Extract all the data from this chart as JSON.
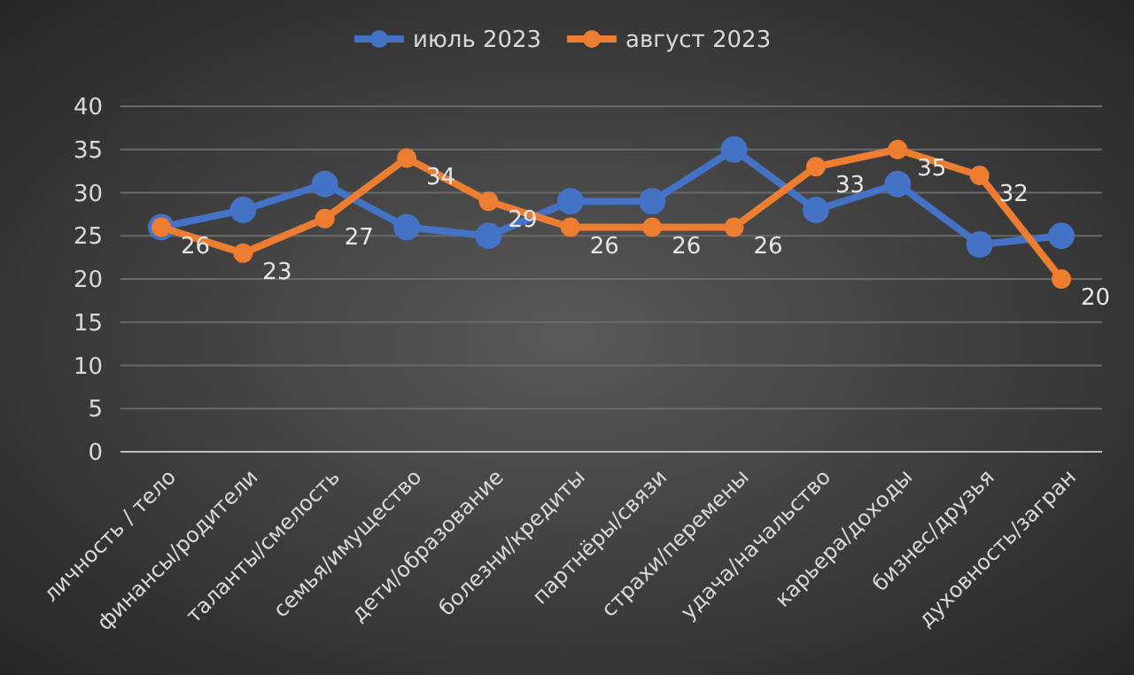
{
  "chart_data": {
    "type": "line",
    "categories": [
      "личность / тело",
      "финансы/родители",
      "таланты/смелость",
      "семья/имущество",
      "дети/образование",
      "болезни/кредиты",
      "партнёры/связи",
      "страхи/перемены",
      "удача/начальство",
      "карьера/доходы",
      "бизнес/друзья",
      "духовность/загран"
    ],
    "series": [
      {
        "name": "июль 2023",
        "color": "#4472c4",
        "values": [
          26,
          28,
          31,
          26,
          25,
          29,
          29,
          35,
          28,
          31,
          24,
          25
        ]
      },
      {
        "name": "август 2023",
        "color": "#ed7d31",
        "values": [
          26,
          23,
          27,
          34,
          29,
          26,
          26,
          26,
          33,
          35,
          32,
          20
        ],
        "value_labels": [
          "26",
          "23",
          "27",
          "34",
          "29",
          "26",
          "26",
          "26",
          "33",
          "35",
          "32",
          "20"
        ]
      }
    ],
    "ylim": [
      0,
      40
    ],
    "yticks": [
      0,
      5,
      10,
      15,
      20,
      25,
      30,
      35,
      40
    ],
    "grid": "y",
    "legend": "top",
    "marker": "circle",
    "line_style": "solid"
  }
}
